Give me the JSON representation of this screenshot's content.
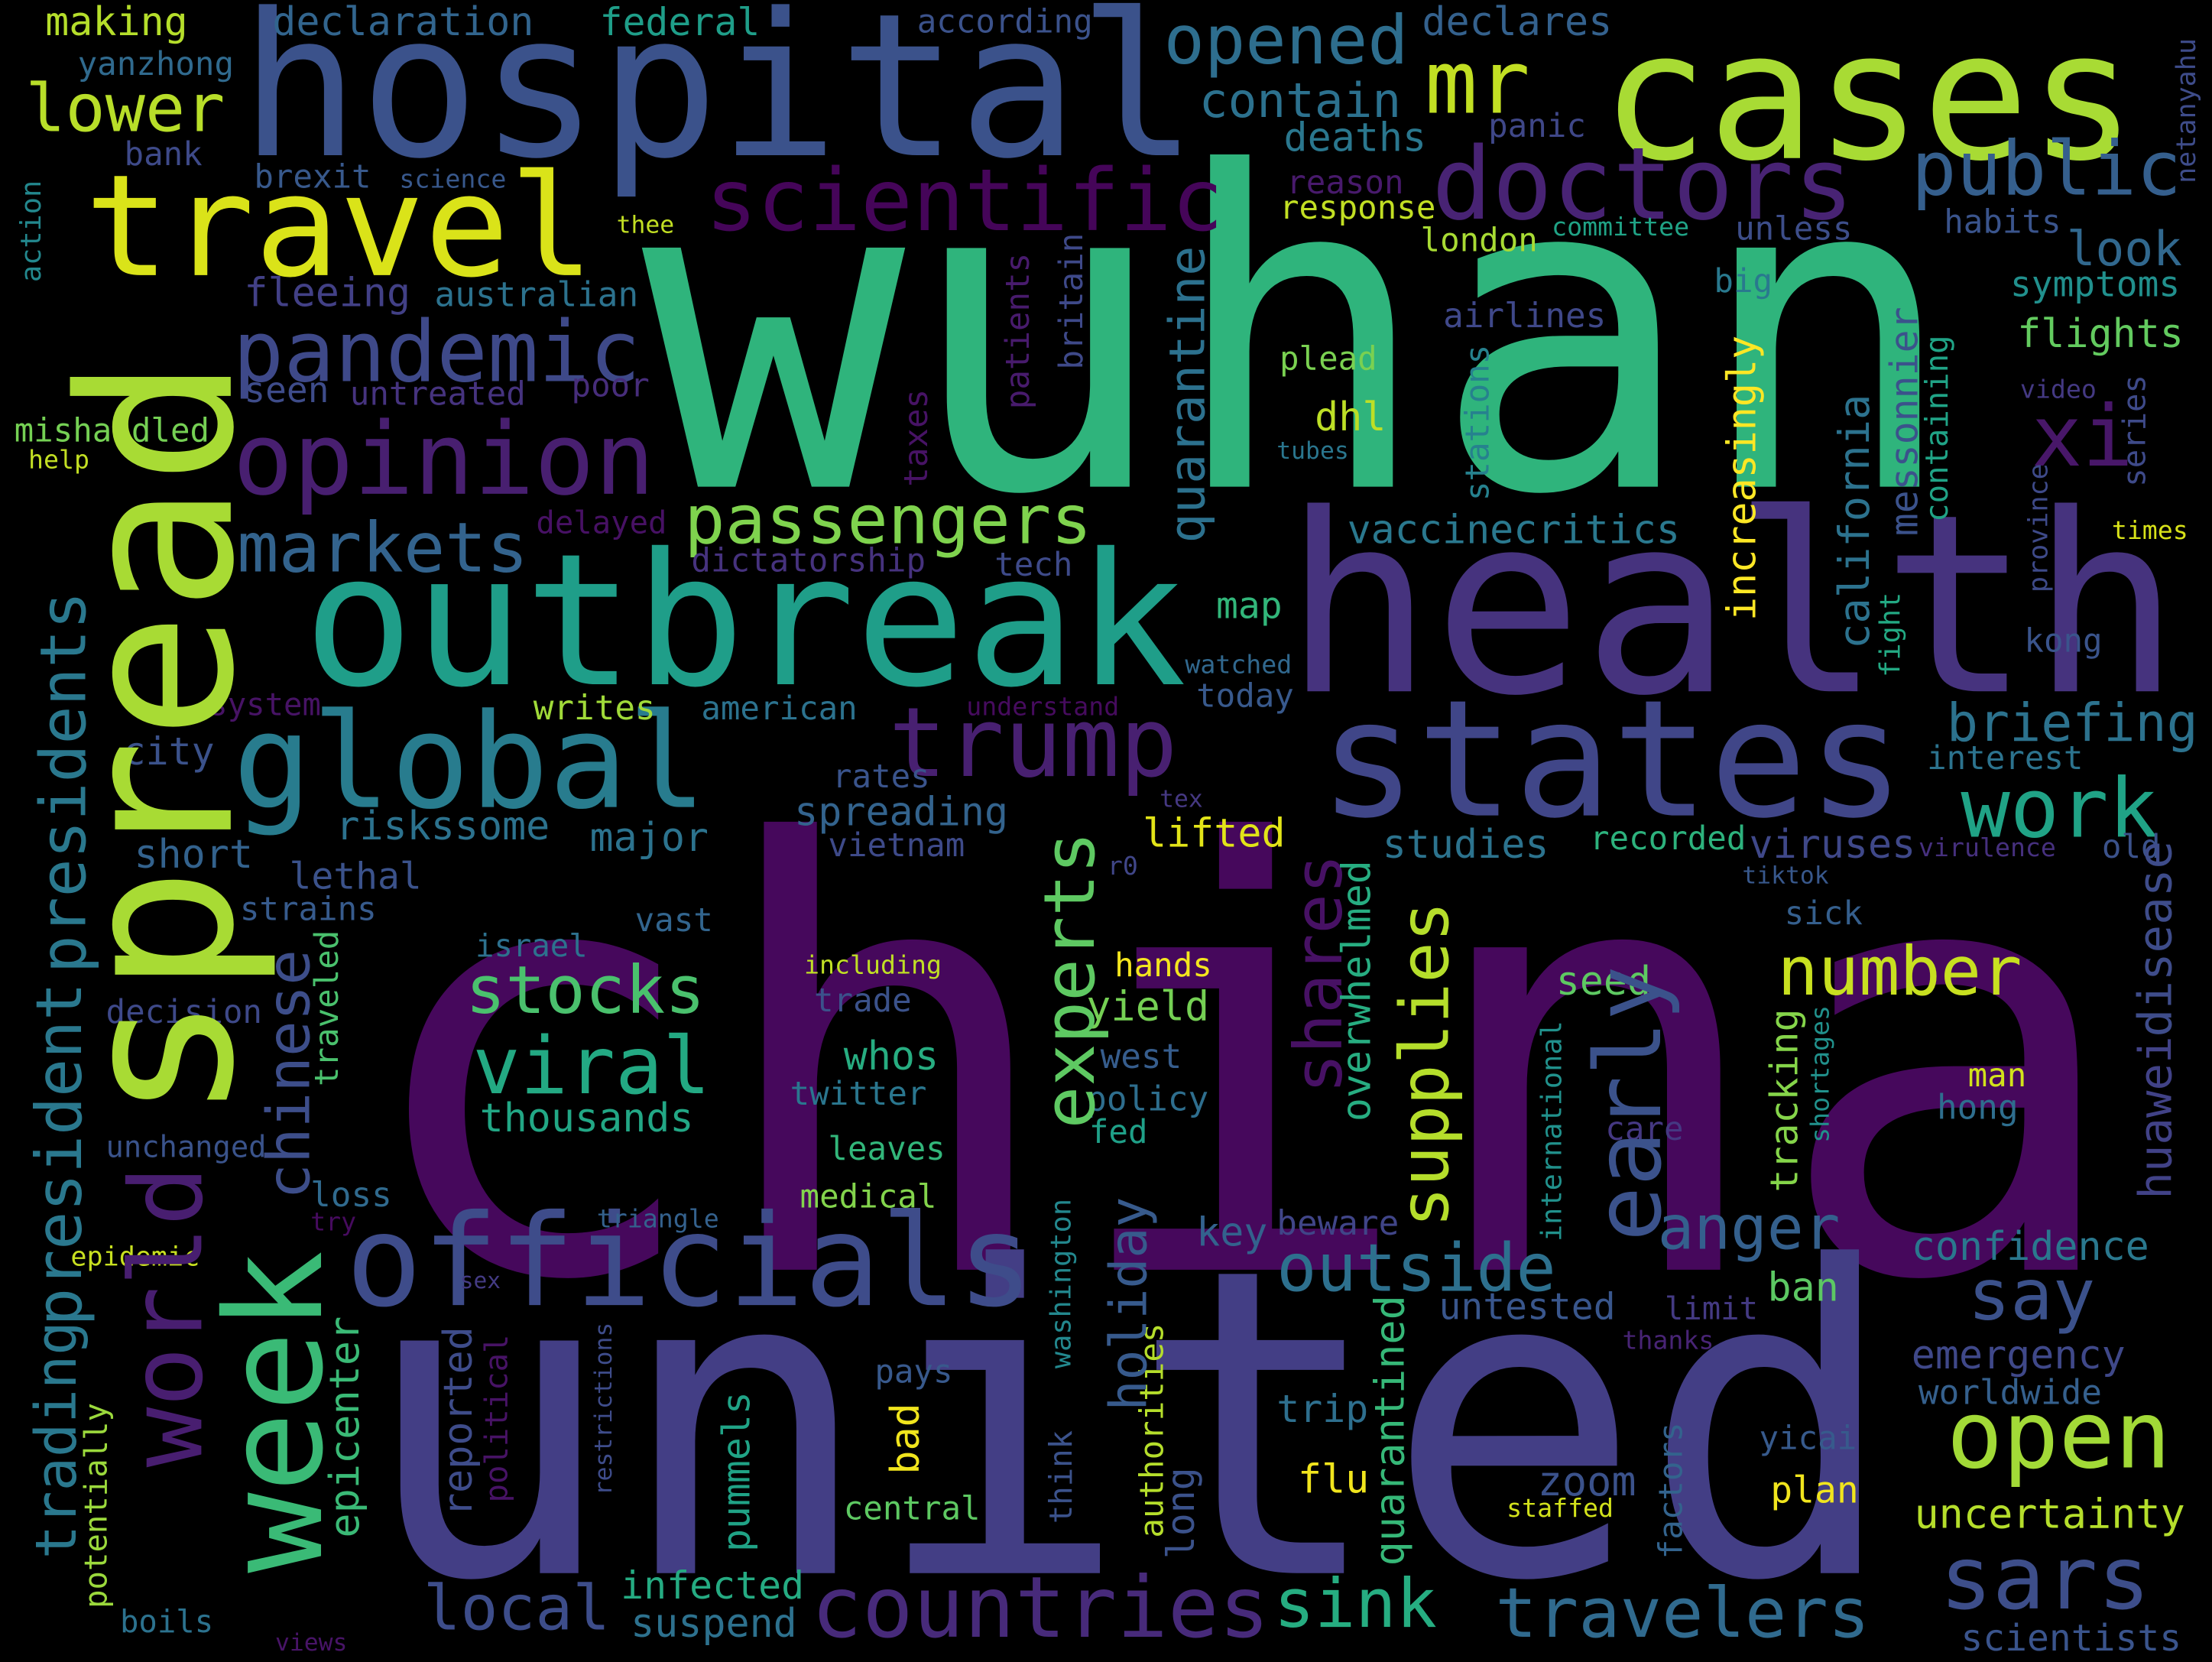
{
  "words": [
    {
      "text": "wuhan",
      "color": "#2fb47c"
    },
    {
      "text": "china",
      "color": "#46085c"
    },
    {
      "text": "united",
      "color": "#433e85"
    },
    {
      "text": "health",
      "color": "#46337e"
    },
    {
      "text": "hospital",
      "color": "#3b528b"
    },
    {
      "text": "cases",
      "color": "#a8db34"
    },
    {
      "text": "outbreak",
      "color": "#1f9e89"
    },
    {
      "text": "states",
      "color": "#404688"
    },
    {
      "text": "officials",
      "color": "#3e4c8a"
    },
    {
      "text": "travel",
      "color": "#dae319"
    },
    {
      "text": "doctors",
      "color": "#482374"
    },
    {
      "text": "mr",
      "color": "#c2df23"
    },
    {
      "text": "opened",
      "color": "#2e6e8e"
    },
    {
      "text": "scientific",
      "color": "#450559"
    },
    {
      "text": "pandemic",
      "color": "#3e4989"
    },
    {
      "text": "opinion",
      "color": "#481f70"
    },
    {
      "text": "global",
      "color": "#287c8e"
    },
    {
      "text": "trump",
      "color": "#482071"
    },
    {
      "text": "passengers",
      "color": "#7fd34e"
    },
    {
      "text": "markets",
      "color": "#33638d"
    },
    {
      "text": "public",
      "color": "#355f8d"
    },
    {
      "text": "lower",
      "color": "#b8de29"
    },
    {
      "text": "xi",
      "color": "#481769"
    },
    {
      "text": "look",
      "color": "#31688e"
    },
    {
      "text": "work",
      "color": "#20a386"
    },
    {
      "text": "briefing",
      "color": "#2c728e"
    },
    {
      "text": "stocks",
      "color": "#4ac16d"
    },
    {
      "text": "viral",
      "color": "#23a983"
    },
    {
      "text": "thousands",
      "color": "#22a785"
    },
    {
      "text": "number",
      "color": "#c8e020"
    },
    {
      "text": "open",
      "color": "#a2da37"
    },
    {
      "text": "say",
      "color": "#3b518b"
    },
    {
      "text": "sars",
      "color": "#3d4e8a"
    },
    {
      "text": "anger",
      "color": "#34608d"
    },
    {
      "text": "outside",
      "color": "#2d708e"
    },
    {
      "text": "countries",
      "color": "#472a7a"
    },
    {
      "text": "local",
      "color": "#3d4d8a"
    },
    {
      "text": "sink",
      "color": "#26ad81"
    },
    {
      "text": "travelers",
      "color": "#306a8e"
    },
    {
      "text": "suspend",
      "color": "#2d718e"
    },
    {
      "text": "infected",
      "color": "#25ab82"
    },
    {
      "text": "scientists",
      "color": "#3a548c"
    },
    {
      "text": "uncertainty",
      "color": "#b5de2b"
    },
    {
      "text": "emergency",
      "color": "#3f4889"
    },
    {
      "text": "worldwide",
      "color": "#35608d"
    },
    {
      "text": "confidence",
      "color": "#2a788e"
    },
    {
      "text": "plan",
      "color": "#f1e51d"
    },
    {
      "text": "yicai",
      "color": "#375a8c"
    },
    {
      "text": "ban",
      "color": "#5cc863"
    },
    {
      "text": "limit",
      "color": "#443a83"
    },
    {
      "text": "thanks",
      "color": "#482475"
    },
    {
      "text": "untested",
      "color": "#39568c"
    },
    {
      "text": "staffed",
      "color": "#d2e21b"
    },
    {
      "text": "zoom",
      "color": "#3b528b"
    },
    {
      "text": "flu",
      "color": "#f1e51d"
    },
    {
      "text": "trip",
      "color": "#2e6f8e"
    },
    {
      "text": "beware",
      "color": "#404588"
    },
    {
      "text": "key",
      "color": "#33628d"
    },
    {
      "text": "central",
      "color": "#5ec962"
    },
    {
      "text": "pays",
      "color": "#38598c"
    },
    {
      "text": "medical",
      "color": "#83d44c"
    },
    {
      "text": "leaves",
      "color": "#32b67a"
    },
    {
      "text": "twitter",
      "color": "#2a768e"
    },
    {
      "text": "whos",
      "color": "#27ad81"
    },
    {
      "text": "trade",
      "color": "#3b528b"
    },
    {
      "text": "including",
      "color": "#c0df25"
    },
    {
      "text": "hands",
      "color": "#f4e61e"
    },
    {
      "text": "yield",
      "color": "#75d054"
    },
    {
      "text": "west",
      "color": "#365d8d"
    },
    {
      "text": "policy",
      "color": "#2e6e8e"
    },
    {
      "text": "fed",
      "color": "#1fa088"
    },
    {
      "text": "israel",
      "color": "#2d718e"
    },
    {
      "text": "vast",
      "color": "#32658e"
    },
    {
      "text": "major",
      "color": "#2c738e"
    },
    {
      "text": "riskssome",
      "color": "#2c728e"
    },
    {
      "text": "lethal",
      "color": "#3b528b"
    },
    {
      "text": "strains",
      "color": "#375b8d"
    },
    {
      "text": "short",
      "color": "#33628d"
    },
    {
      "text": "city",
      "color": "#3b528b"
    },
    {
      "text": "decision",
      "color": "#3e4989"
    },
    {
      "text": "unchanged",
      "color": "#3a538b"
    },
    {
      "text": "loss",
      "color": "#306a8e"
    },
    {
      "text": "try",
      "color": "#460b5e"
    },
    {
      "text": "triangle",
      "color": "#34618d"
    },
    {
      "text": "epidemic",
      "color": "#c8e020"
    },
    {
      "text": "sex",
      "color": "#443b84"
    },
    {
      "text": "boils",
      "color": "#2c728e"
    },
    {
      "text": "views",
      "color": "#481467"
    },
    {
      "text": "system",
      "color": "#471365"
    },
    {
      "text": "writes",
      "color": "#a0da39"
    },
    {
      "text": "american",
      "color": "#2c728e"
    },
    {
      "text": "understand",
      "color": "#460b5e"
    },
    {
      "text": "watched",
      "color": "#31688e"
    },
    {
      "text": "today",
      "color": "#38598c"
    },
    {
      "text": "map",
      "color": "#32b67a"
    },
    {
      "text": "rates",
      "color": "#3a548c"
    },
    {
      "text": "spreading",
      "color": "#33638d"
    },
    {
      "text": "vietnam",
      "color": "#3e4a89"
    },
    {
      "text": "tex",
      "color": "#453882"
    },
    {
      "text": "lifted",
      "color": "#e2e418"
    },
    {
      "text": "r0",
      "color": "#404688"
    },
    {
      "text": "studies",
      "color": "#2c738e"
    },
    {
      "text": "recorded",
      "color": "#2db27d"
    },
    {
      "text": "viruses",
      "color": "#3f4889"
    },
    {
      "text": "virulence",
      "color": "#46307e"
    },
    {
      "text": "old",
      "color": "#3b528b"
    },
    {
      "text": "tiktok",
      "color": "#38588c"
    },
    {
      "text": "sick",
      "color": "#355f8d"
    },
    {
      "text": "interest",
      "color": "#2c738e"
    },
    {
      "text": "seed",
      "color": "#5ec962"
    },
    {
      "text": "man",
      "color": "#d2e21b"
    },
    {
      "text": "hong",
      "color": "#2e6e8e"
    },
    {
      "text": "care",
      "color": "#453882"
    },
    {
      "text": "vaccinecritics",
      "color": "#2a788e"
    },
    {
      "text": "dhl",
      "color": "#bddf26"
    },
    {
      "text": "plead",
      "color": "#7ad151"
    },
    {
      "text": "tubes",
      "color": "#2a768e"
    },
    {
      "text": "airlines",
      "color": "#3f4889"
    },
    {
      "text": "big",
      "color": "#29798e"
    },
    {
      "text": "response",
      "color": "#c2df23"
    },
    {
      "text": "reason",
      "color": "#481a6c"
    },
    {
      "text": "deaths",
      "color": "#2a778e"
    },
    {
      "text": "contain",
      "color": "#2c718e"
    },
    {
      "text": "panic",
      "color": "#3f4788"
    },
    {
      "text": "london",
      "color": "#a8db34"
    },
    {
      "text": "committee",
      "color": "#20a386"
    },
    {
      "text": "unless",
      "color": "#3d4e8a"
    },
    {
      "text": "habits",
      "color": "#3a548c"
    },
    {
      "text": "symptoms",
      "color": "#21908d"
    },
    {
      "text": "flights",
      "color": "#63cb5f"
    },
    {
      "text": "video",
      "color": "#443983"
    },
    {
      "text": "times",
      "color": "#d8e219"
    },
    {
      "text": "kong",
      "color": "#3a548c"
    },
    {
      "text": "declares",
      "color": "#34618d"
    },
    {
      "text": "federal",
      "color": "#1f9e89"
    },
    {
      "text": "declaration",
      "color": "#32658e"
    },
    {
      "text": "making",
      "color": "#b5de2b"
    },
    {
      "text": "according",
      "color": "#3b528b"
    },
    {
      "text": "yanzhong",
      "color": "#306a8e"
    },
    {
      "text": "bank",
      "color": "#3e4a89"
    },
    {
      "text": "brexit",
      "color": "#38598c"
    },
    {
      "text": "science",
      "color": "#38588c"
    },
    {
      "text": "thee",
      "color": "#c2df23"
    },
    {
      "text": "fleeing",
      "color": "#424086"
    },
    {
      "text": "australian",
      "color": "#2c728e"
    },
    {
      "text": "seen",
      "color": "#3e4c8a"
    },
    {
      "text": "untreated",
      "color": "#46337f"
    },
    {
      "text": "poor",
      "color": "#472d7b"
    },
    {
      "text": "mishandled",
      "color": "#75d054"
    },
    {
      "text": "help",
      "color": "#c2df23"
    },
    {
      "text": "delayed",
      "color": "#471164"
    },
    {
      "text": "dictatorship",
      "color": "#46327e"
    },
    {
      "text": "tech",
      "color": "#3e4a89"
    },
    {
      "text": "spread",
      "color": "#a8db34"
    },
    {
      "text": "world",
      "color": "#481e70"
    },
    {
      "text": "week",
      "color": "#3aba76"
    },
    {
      "text": "trading",
      "color": "#2a788e"
    },
    {
      "text": "president",
      "color": "#2a788e"
    },
    {
      "text": "presidents",
      "color": "#2a788e"
    },
    {
      "text": "potentially",
      "color": "#9bd93c"
    },
    {
      "text": "chinese",
      "color": "#3d4e8a"
    },
    {
      "text": "traveled",
      "color": "#4ac16d"
    },
    {
      "text": "epicenter",
      "color": "#3aba76"
    },
    {
      "text": "reported",
      "color": "#3e4c8a"
    },
    {
      "text": "political",
      "color": "#471365"
    },
    {
      "text": "restrictions",
      "color": "#3e4c8a"
    },
    {
      "text": "pummels",
      "color": "#20a386"
    },
    {
      "text": "bad",
      "color": "#f1e51d"
    },
    {
      "text": "think",
      "color": "#3b528b"
    },
    {
      "text": "washington",
      "color": "#23888e"
    },
    {
      "text": "authorities",
      "color": "#b5de2b"
    },
    {
      "text": "long",
      "color": "#3b528b"
    },
    {
      "text": "holiday",
      "color": "#375a8c"
    },
    {
      "text": "quarantined",
      "color": "#36b878"
    },
    {
      "text": "shares",
      "color": "#471164"
    },
    {
      "text": "overwhelmed",
      "color": "#27ad81"
    },
    {
      "text": "supplies",
      "color": "#b5de2b"
    },
    {
      "text": "quarantine",
      "color": "#2c718e"
    },
    {
      "text": "early",
      "color": "#3b528b"
    },
    {
      "text": "factors",
      "color": "#33638d"
    },
    {
      "text": "international",
      "color": "#21918c"
    },
    {
      "text": "tracking",
      "color": "#85d54a"
    },
    {
      "text": "shortages",
      "color": "#21918c"
    },
    {
      "text": "increasingly",
      "color": "#fde725"
    },
    {
      "text": "stations",
      "color": "#26818e"
    },
    {
      "text": "california",
      "color": "#2c728e"
    },
    {
      "text": "fight",
      "color": "#23a983"
    },
    {
      "text": "messonnier",
      "color": "#3b528b"
    },
    {
      "text": "containing",
      "color": "#20a386"
    },
    {
      "text": "series",
      "color": "#3e4a89"
    },
    {
      "text": "province",
      "color": "#3e4a89"
    },
    {
      "text": "netanyahu",
      "color": "#3e4c8a"
    },
    {
      "text": "action",
      "color": "#23888e"
    },
    {
      "text": "disease",
      "color": "#3e4c8a"
    },
    {
      "text": "huawei",
      "color": "#414287"
    },
    {
      "text": "patients",
      "color": "#481b6d"
    },
    {
      "text": "britain",
      "color": "#3e4989"
    },
    {
      "text": "taxes",
      "color": "#471365"
    },
    {
      "text": "experts",
      "color": "#5ec962"
    }
  ]
}
